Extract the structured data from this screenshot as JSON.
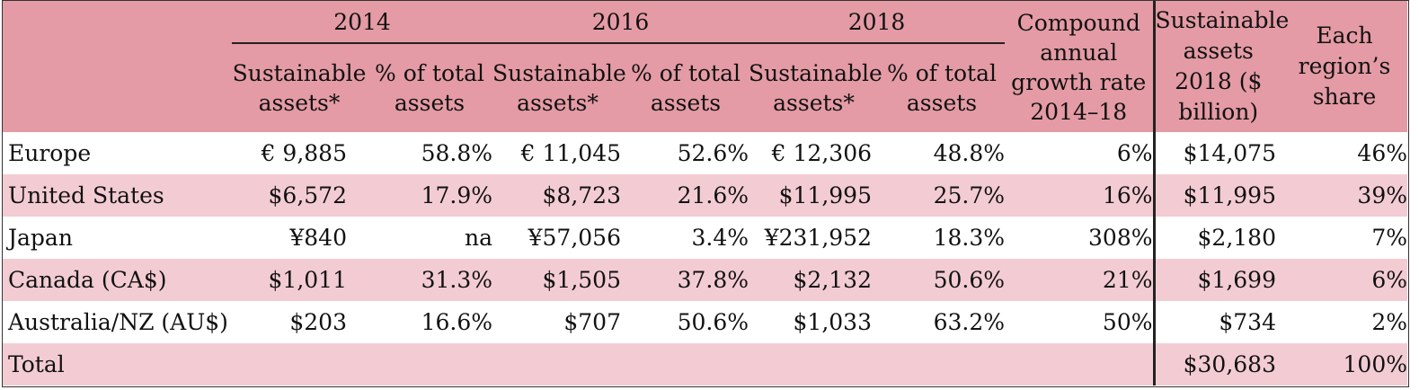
{
  "headers": {
    "year_2014": "2014",
    "year_2016": "2016",
    "year_2018": "2018",
    "sustainable_assets": "Sustainable assets*",
    "pct_total": "% of total assets",
    "cagr": "Compound annual growth rate 2014–18",
    "sustainable_2018_usd": "Sustainable assets 2018 ($ billion)",
    "region_share": "Each region’s share"
  },
  "rows": [
    {
      "region": "Europe",
      "sa2014": "€ 9,885",
      "pct2014": "58.8%",
      "sa2016": "€ 11,045",
      "pct2016": "52.6%",
      "sa2018": "€ 12,306",
      "pct2018": "48.8%",
      "cagr": "6%",
      "usd2018": "$14,075",
      "share": "46%"
    },
    {
      "region": "United States",
      "sa2014": "$6,572",
      "pct2014": "17.9%",
      "sa2016": "$8,723",
      "pct2016": "21.6%",
      "sa2018": "$11,995",
      "pct2018": "25.7%",
      "cagr": "16%",
      "usd2018": "$11,995",
      "share": "39%"
    },
    {
      "region": "Japan",
      "sa2014": "¥840",
      "pct2014": "na",
      "sa2016": "¥57,056",
      "pct2016": "3.4%",
      "sa2018": "¥231,952",
      "pct2018": "18.3%",
      "cagr": "308%",
      "usd2018": "$2,180",
      "share": "7%"
    },
    {
      "region": "Canada (CA$)",
      "sa2014": "$1,011",
      "pct2014": "31.3%",
      "sa2016": "$1,505",
      "pct2016": "37.8%",
      "sa2018": "$2,132",
      "pct2018": "50.6%",
      "cagr": "21%",
      "usd2018": "$1,699",
      "share": "6%"
    },
    {
      "region": "Australia/NZ (AU$)",
      "sa2014": "$203",
      "pct2014": "16.6%",
      "sa2016": "$707",
      "pct2016": "50.6%",
      "sa2018": "$1,033",
      "pct2018": "63.2%",
      "cagr": "50%",
      "usd2018": "$734",
      "share": "2%"
    }
  ],
  "total": {
    "label": "Total",
    "usd2018": "$30,683",
    "share": "100%"
  },
  "colors": {
    "header_bg": "#e49ba5",
    "band_bg": "#f3ccd3",
    "row_bg": "#ffffff",
    "rule": "#222222"
  }
}
